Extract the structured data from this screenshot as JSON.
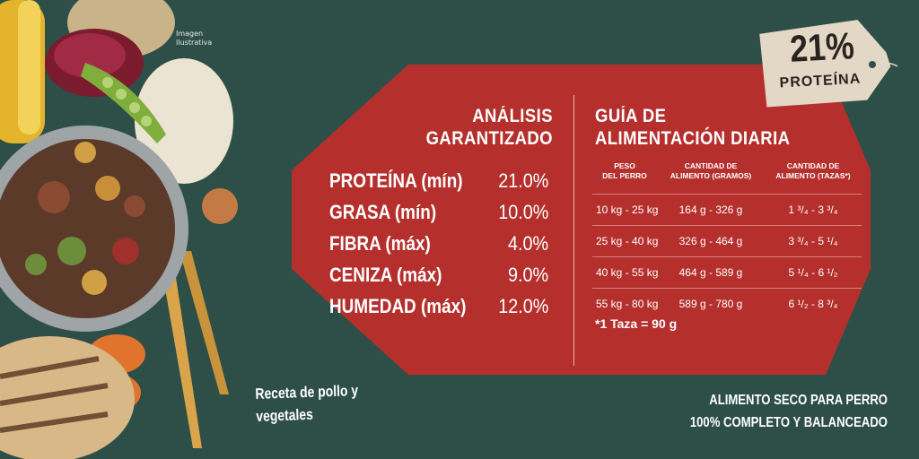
{
  "image_note": [
    "Imagen",
    "Ilustrativa"
  ],
  "analysis": {
    "title": [
      "ANÁLISIS",
      "GARANTIZADO"
    ],
    "rows": [
      {
        "label": "PROTEÍNA (mín)",
        "value": "21.0%"
      },
      {
        "label": "GRASA (mín)",
        "value": "10.0%"
      },
      {
        "label": "FIBRA (máx)",
        "value": "4.0%"
      },
      {
        "label": "CENIZA (máx)",
        "value": "9.0%"
      },
      {
        "label": "HUMEDAD (máx)",
        "value": "12.0%"
      }
    ]
  },
  "guide": {
    "title": [
      "GUÍA DE",
      "ALIMENTACIÓN DIARIA"
    ],
    "headers": [
      [
        "PESO",
        "DEL PERRO"
      ],
      [
        "CANTIDAD DE",
        "ALIMENTO (GRAMOS)"
      ],
      [
        "CANTIDAD DE",
        "ALIMENTO (TAZAS*)"
      ]
    ],
    "rows": [
      {
        "weight": "10 kg - 25 kg",
        "grams": "164 g - 326 g",
        "cups": "1 ³/₄ - 3 ³/₄"
      },
      {
        "weight": "25 kg - 40 kg",
        "grams": "326 g - 464 g",
        "cups": "3 ³/₄ - 5 ¹/₄"
      },
      {
        "weight": "40 kg - 55 kg",
        "grams": "464 g - 589 g",
        "cups": "5 ¹/₄ - 6 ¹/₂"
      },
      {
        "weight": "55 kg - 80 kg",
        "grams": "589 g - 780 g",
        "cups": "6 ¹/₂ - 8 ³/₄"
      }
    ],
    "note": "*1 Taza = 90 g"
  },
  "tag": {
    "percent": "21%",
    "word": "PROTEÍNA"
  },
  "recipe": [
    "Receta de pollo y",
    "vegetales"
  ],
  "tagline": [
    "ALIMENTO SECO PARA PERRO",
    "100% COMPLETO Y BALANCEADO"
  ],
  "colors": {
    "background": "#2d4f47",
    "panel": "#b5302c",
    "tag": "#e3d8c6"
  },
  "icons": [
    "dog-food-bowl-illustration",
    "price-tag-icon"
  ]
}
